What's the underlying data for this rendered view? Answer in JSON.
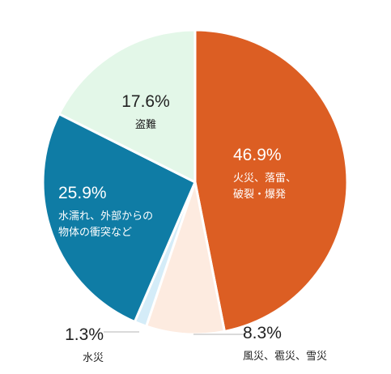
{
  "chart_data": {
    "type": "pie",
    "start_angle_deg": 0,
    "direction": "clockwise",
    "slices": [
      {
        "percent_label": "46.9%",
        "value": 46.9,
        "label_lines": [
          "火災、落雷、",
          "破裂・爆発"
        ],
        "color": "#dc5e23",
        "label_position": "inside",
        "text_color": "#ffffff"
      },
      {
        "percent_label": "8.3%",
        "value": 8.3,
        "label_lines": [
          "風災、雹災、雪災"
        ],
        "color": "#fdebe0",
        "label_position": "outside-bottom-right",
        "text_color": "#222222"
      },
      {
        "percent_label": "1.3%",
        "value": 1.3,
        "label_lines": [
          "水災"
        ],
        "color": "#d4ecf8",
        "label_position": "outside-bottom-left",
        "text_color": "#222222"
      },
      {
        "percent_label": "25.9%",
        "value": 25.9,
        "label_lines": [
          "水濡れ、外部からの",
          "物体の衝突など"
        ],
        "color": "#0f7ca5",
        "label_position": "inside",
        "text_color": "#ffffff"
      },
      {
        "percent_label": "17.6%",
        "value": 17.6,
        "label_lines": [
          "盗難"
        ],
        "color": "#e3f7e8",
        "label_position": "inside",
        "text_color": "#222222"
      }
    ]
  }
}
